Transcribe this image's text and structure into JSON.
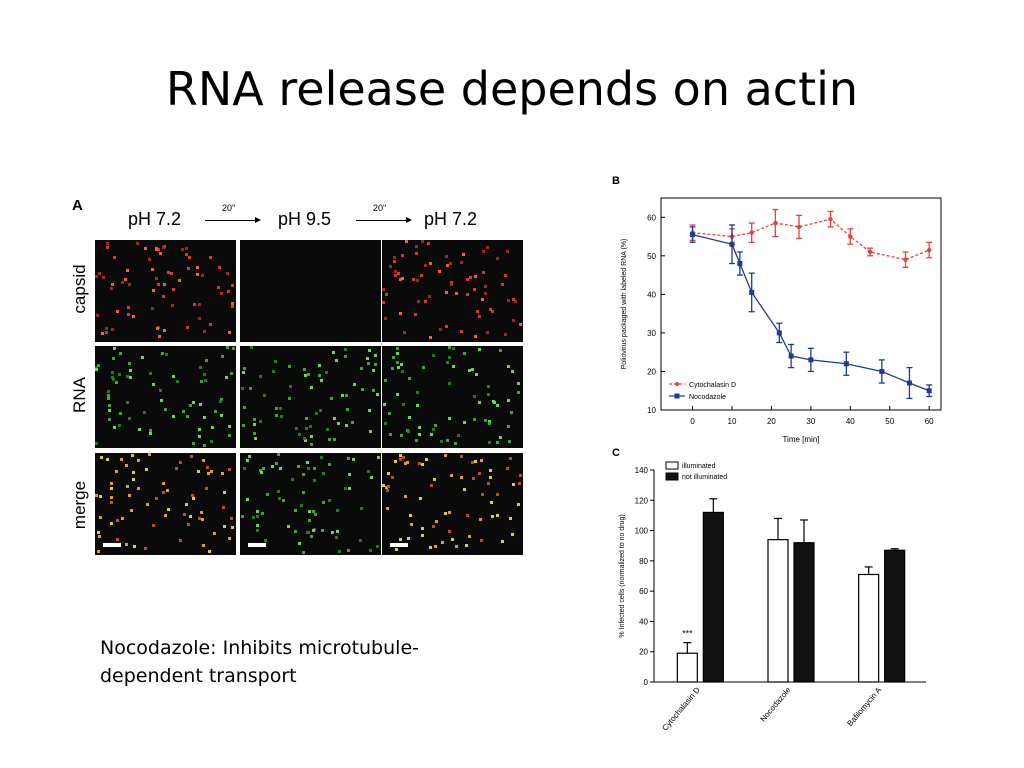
{
  "slide": {
    "title": "RNA release depends on actin",
    "caption": "Nocodazole: Inhibits microtubule-dependent transport"
  },
  "panel_a": {
    "letter": "A",
    "conditions": [
      "pH 7.2",
      "pH 9.5",
      "pH 7.2"
    ],
    "arrow_labels": [
      "20''",
      "20''"
    ],
    "rows": [
      "capsid",
      "RNA",
      "merge"
    ]
  },
  "chart_data": [
    {
      "panel": "B",
      "type": "line",
      "xlabel": "Time [min]",
      "ylabel": "Poliovirus packaged with labeled RNA (%)",
      "xlim": [
        -8,
        63
      ],
      "ylim": [
        10,
        65
      ],
      "xticks": [
        0,
        10,
        20,
        30,
        40,
        50,
        60
      ],
      "yticks": [
        10,
        20,
        30,
        40,
        50,
        60
      ],
      "legend_position": "bottom-left",
      "series": [
        {
          "name": "Cytochalasin D",
          "color": "#e8403c",
          "x": [
            0,
            10,
            15,
            21,
            27,
            35,
            40,
            45,
            54,
            60
          ],
          "y": [
            56,
            55,
            56,
            58.5,
            57.5,
            59.5,
            55,
            51,
            49,
            51.5
          ],
          "err": [
            2,
            2,
            2.5,
            3.5,
            3,
            2,
            2,
            1,
            2,
            2
          ]
        },
        {
          "name": "Nocodazole",
          "color": "#1f3a93",
          "x": [
            0,
            10,
            12,
            15,
            22,
            25,
            30,
            39,
            48,
            55,
            60
          ],
          "y": [
            55.5,
            53,
            48,
            40.5,
            30,
            24,
            23,
            22,
            20,
            17,
            15
          ],
          "err": [
            2,
            5,
            3,
            5,
            2.5,
            3,
            3,
            3,
            3,
            4,
            1.5
          ]
        }
      ]
    },
    {
      "panel": "C",
      "type": "bar",
      "xlabel": "",
      "ylabel": "% Infected cells (normalized to no drug)",
      "ylim": [
        0,
        140
      ],
      "yticks": [
        0,
        20,
        40,
        60,
        80,
        100,
        120,
        140
      ],
      "legend_position": "top-left",
      "categories": [
        "Cytochalasin D",
        "Nocodazole",
        "Bafilomycin A"
      ],
      "series": [
        {
          "name": "illuminated",
          "color": "#ffffff",
          "values": [
            19,
            94,
            71
          ],
          "err": [
            7,
            14,
            5
          ]
        },
        {
          "name": "not illuminated",
          "color": "#111111",
          "values": [
            112,
            92,
            87
          ],
          "err": [
            9,
            15,
            1
          ]
        }
      ],
      "annotations": [
        {
          "text": "***",
          "category": "Cytochalasin D",
          "series": "illuminated"
        }
      ]
    }
  ]
}
